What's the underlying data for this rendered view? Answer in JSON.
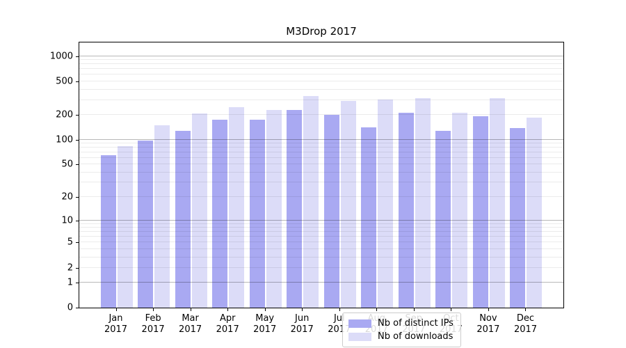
{
  "chart_data": {
    "type": "bar",
    "title": "M3Drop 2017",
    "yscale": "log1p",
    "ylim": [
      0,
      1455
    ],
    "categories": [
      "Jan",
      "Feb",
      "Mar",
      "Apr",
      "May",
      "Jun",
      "Jul",
      "Aug",
      "Sep",
      "Oct",
      "Nov",
      "Dec"
    ],
    "category_year": "2017",
    "series": [
      {
        "name": "Nb of distinct IPs",
        "color": "#a9a9f2",
        "values": [
          65,
          97,
          127,
          174,
          173,
          225,
          198,
          141,
          210,
          127,
          191,
          137
        ]
      },
      {
        "name": "Nb of downloads",
        "color": "#dcdcf8",
        "values": [
          84,
          148,
          206,
          244,
          228,
          333,
          293,
          302,
          315,
          210,
          312,
          185
        ]
      }
    ],
    "yticks": [
      1000,
      500,
      200,
      100,
      50,
      20,
      10,
      5,
      2,
      1,
      0
    ],
    "major_gridlines": [
      1,
      10,
      100,
      1000
    ],
    "grid": true,
    "legend_position": "lower-center"
  },
  "colors": {
    "axis": "#000000",
    "major_grid": "#b3b3b3",
    "minor_grid": "#ebebeb",
    "legend_border": "#cccccc"
  }
}
